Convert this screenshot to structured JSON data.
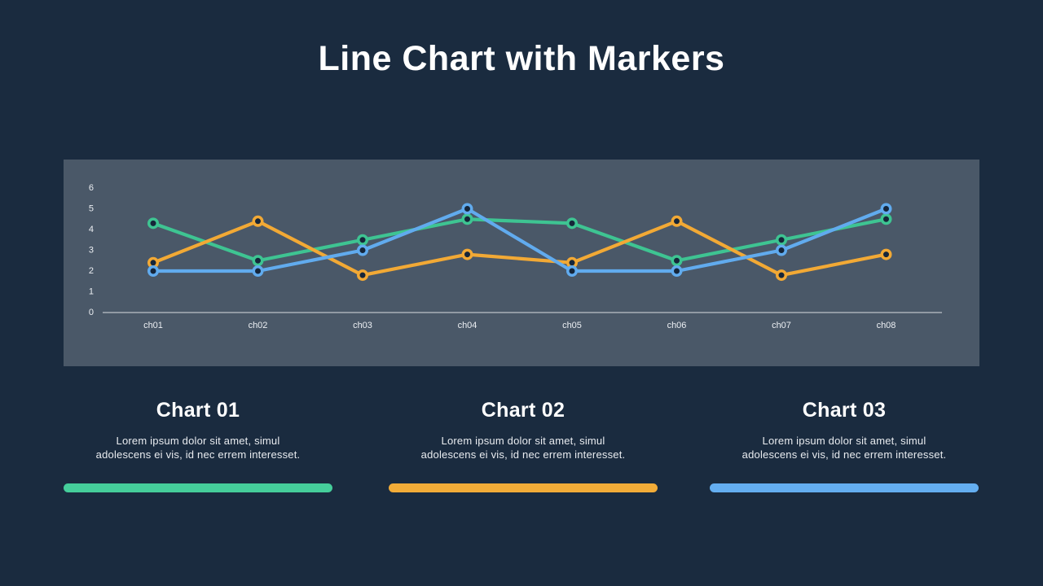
{
  "slide": {
    "title": "Line Chart with Markers",
    "background_color": "#1A2B3F",
    "title_color": "#FFFFFF"
  },
  "chart_data": {
    "type": "line",
    "title": "",
    "xlabel": "",
    "ylabel": "",
    "categories": [
      "ch01",
      "ch02",
      "ch03",
      "ch04",
      "ch05",
      "ch06",
      "ch07",
      "ch08"
    ],
    "series": [
      {
        "name": "Chart 01",
        "color": "#3EC492",
        "values": [
          4.3,
          2.5,
          3.5,
          4.5,
          4.3,
          2.5,
          3.5,
          4.5
        ]
      },
      {
        "name": "Chart 02",
        "color": "#F2A935",
        "values": [
          2.4,
          4.4,
          1.8,
          2.8,
          2.4,
          4.4,
          1.8,
          2.8
        ]
      },
      {
        "name": "Chart 03",
        "color": "#61ABEE",
        "values": [
          2.0,
          2.0,
          3.0,
          5.0,
          2.0,
          2.0,
          3.0,
          5.0
        ]
      }
    ],
    "ylim": [
      0,
      6
    ],
    "yticks": [
      0,
      1,
      2,
      3,
      4,
      5,
      6
    ],
    "grid": false,
    "legend_position": "none",
    "marker": "circle-ring",
    "marker_fill": "#16263A",
    "panel_background": "#4A5868",
    "axis_color": "#D8DCE0",
    "tick_label_color": "#ECEFF3"
  },
  "cards": [
    {
      "title": "Chart 01",
      "body_lines": [
        "Lorem ipsum dolor sit amet,  simul",
        "adolescens ei vis, id nec errem  interesset."
      ],
      "accent_color": "#45CE9B"
    },
    {
      "title": "Chart 02",
      "body_lines": [
        "Lorem ipsum dolor sit amet,  simul",
        "adolescens ei vis, id nec errem  interesset."
      ],
      "accent_color": "#F2AC38"
    },
    {
      "title": "Chart 03",
      "body_lines": [
        "Lorem ipsum dolor sit amet,  simul",
        "adolescens ei vis, id nec errem  interesset."
      ],
      "accent_color": "#64AEF0"
    }
  ]
}
